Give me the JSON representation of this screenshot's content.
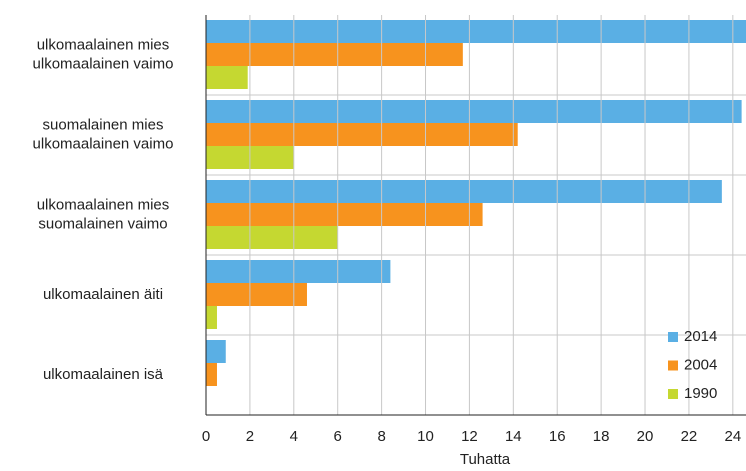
{
  "chart_data": {
    "type": "barh",
    "categories": [
      [
        "ulkomaalainen mies",
        "ulkomaalainen vaimo"
      ],
      [
        "suomalainen mies",
        "ulkomaalainen vaimo"
      ],
      [
        "ulkomaalainen mies",
        "suomalainen vaimo"
      ],
      [
        "ulkomaalainen äiti"
      ],
      [
        "ulkomaalainen isä"
      ]
    ],
    "series": [
      {
        "name": "2014",
        "color": "#5aafe4",
        "values": [
          24.8,
          24.4,
          23.5,
          8.4,
          0.9
        ]
      },
      {
        "name": "2004",
        "color": "#f7931e",
        "values": [
          11.7,
          14.2,
          12.6,
          4.6,
          0.5
        ]
      },
      {
        "name": "1990",
        "color": "#c5d831",
        "values": [
          1.9,
          4.0,
          6.0,
          0.5,
          null
        ]
      }
    ],
    "xlabel": "Tuhatta",
    "xlim": [
      0,
      24.6
    ],
    "xticks": [
      0,
      2,
      4,
      6,
      8,
      10,
      12,
      14,
      16,
      18,
      20,
      22,
      24
    ],
    "grid": true,
    "legend": "bottom-right"
  }
}
